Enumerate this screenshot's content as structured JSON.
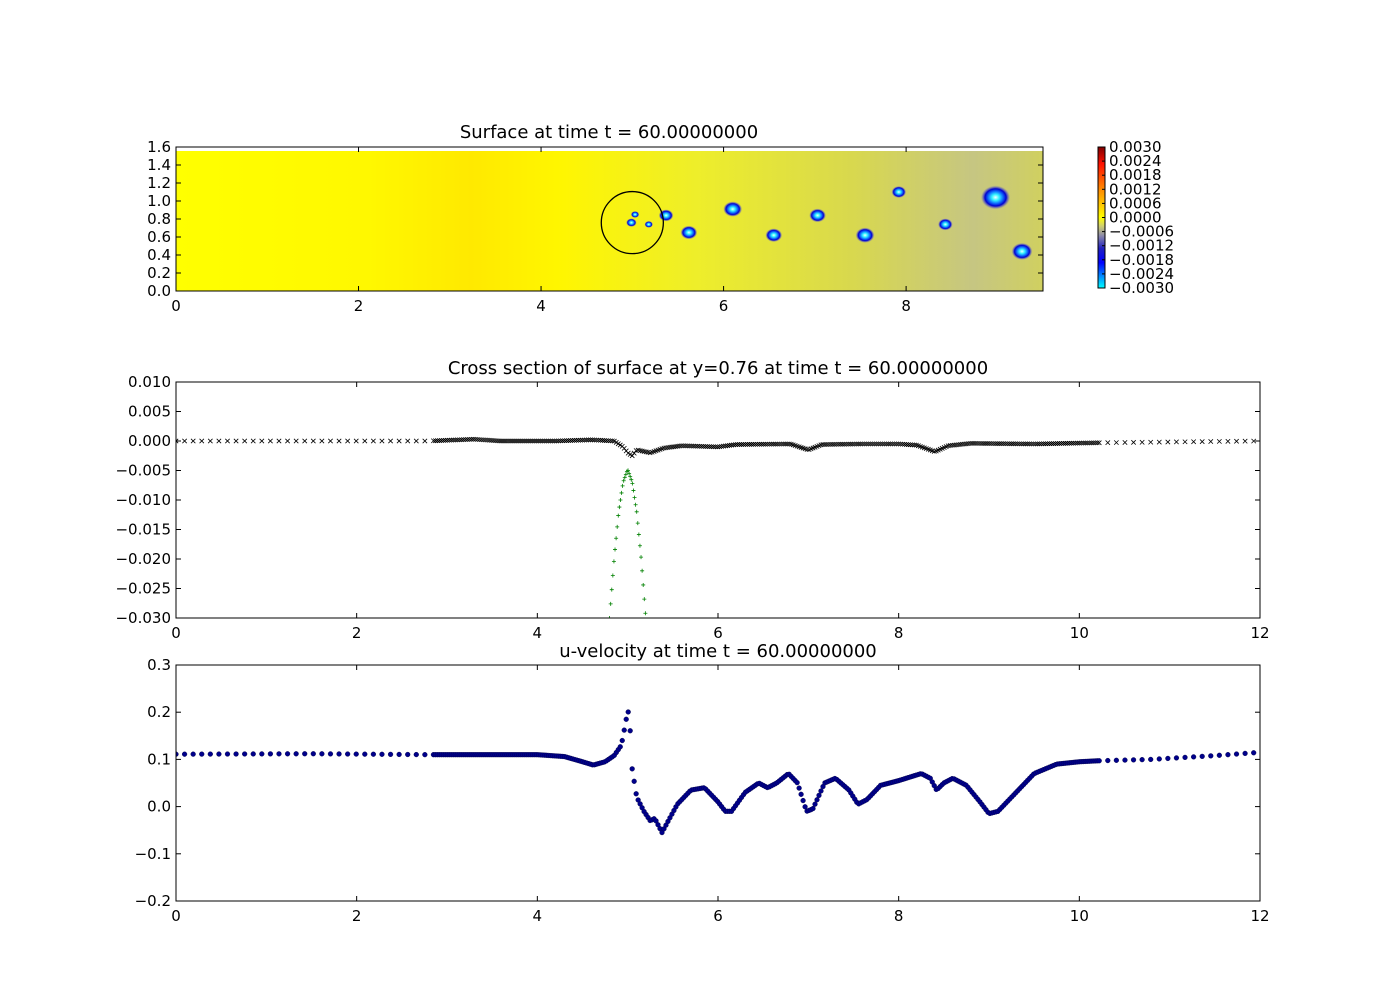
{
  "chart_data": [
    {
      "type": "heatmap",
      "title": "Surface at time t =    60.00000000",
      "xlim": [
        0,
        9.5
      ],
      "ylim": [
        0,
        1.6
      ],
      "xticks": [
        "0",
        "2",
        "4",
        "6",
        "8"
      ],
      "yticks": [
        "0.0",
        "0.2",
        "0.4",
        "0.6",
        "0.8",
        "1.0",
        "1.2",
        "1.4",
        "1.6"
      ],
      "colorbar_ticks": [
        "0.0030",
        "0.0024",
        "0.0018",
        "0.0012",
        "0.0006",
        "0.0000",
        "−0.0006",
        "−0.0012",
        "−0.0018",
        "−0.0024",
        "−0.0030"
      ],
      "colorbar_range": [
        -0.003,
        0.003
      ],
      "background_colors": {
        "high": "#ffe400",
        "zero": "#ffff00",
        "low": "#7a78c0"
      },
      "vortices": [
        {
          "x": 4.99,
          "y": 0.76,
          "r": 0.05
        },
        {
          "x": 5.03,
          "y": 0.85,
          "r": 0.04
        },
        {
          "x": 5.18,
          "y": 0.74,
          "r": 0.04
        },
        {
          "x": 5.37,
          "y": 0.84,
          "r": 0.07
        },
        {
          "x": 5.62,
          "y": 0.65,
          "r": 0.08
        },
        {
          "x": 6.1,
          "y": 0.91,
          "r": 0.09
        },
        {
          "x": 6.55,
          "y": 0.62,
          "r": 0.08
        },
        {
          "x": 7.03,
          "y": 0.84,
          "r": 0.08
        },
        {
          "x": 7.55,
          "y": 0.62,
          "r": 0.09
        },
        {
          "x": 7.92,
          "y": 1.1,
          "r": 0.07
        },
        {
          "x": 8.43,
          "y": 0.74,
          "r": 0.07
        },
        {
          "x": 8.98,
          "y": 1.04,
          "r": 0.14
        },
        {
          "x": 9.27,
          "y": 0.44,
          "r": 0.1
        }
      ],
      "circle": {
        "cx": 5.0,
        "cy": 0.76,
        "r": 0.34
      }
    },
    {
      "type": "scatter",
      "title": "Cross section of surface at y=0.76 at time t =    60.00000000",
      "xlim": [
        0,
        12
      ],
      "ylim": [
        -0.03,
        0.01
      ],
      "xticks": [
        "0",
        "2",
        "4",
        "6",
        "8",
        "10",
        "12"
      ],
      "yticks": [
        "−0.030",
        "−0.025",
        "−0.020",
        "−0.015",
        "−0.010",
        "−0.005",
        "0.000",
        "0.005",
        "0.010"
      ],
      "series": [
        {
          "marker": "x",
          "color": "#000000",
          "x_range": [
            0,
            12
          ],
          "points": [
            [
              0,
              0.0
            ],
            [
              2.8,
              0.0
            ],
            [
              3.3,
              0.0003
            ],
            [
              3.6,
              0.0
            ],
            [
              4.2,
              0.0
            ],
            [
              4.6,
              0.0002
            ],
            [
              4.85,
              0.0
            ],
            [
              4.95,
              -0.001
            ],
            [
              5.0,
              -0.002
            ],
            [
              5.05,
              -0.0025
            ],
            [
              5.1,
              -0.0015
            ],
            [
              5.25,
              -0.002
            ],
            [
              5.4,
              -0.0012
            ],
            [
              5.6,
              -0.0008
            ],
            [
              6.0,
              -0.001
            ],
            [
              6.2,
              -0.0006
            ],
            [
              6.8,
              -0.0005
            ],
            [
              7.0,
              -0.0015
            ],
            [
              7.15,
              -0.0006
            ],
            [
              7.6,
              -0.0005
            ],
            [
              8.0,
              -0.0005
            ],
            [
              8.2,
              -0.0007
            ],
            [
              8.4,
              -0.0018
            ],
            [
              8.55,
              -0.0008
            ],
            [
              8.8,
              -0.0004
            ],
            [
              9.5,
              -0.0005
            ],
            [
              10.2,
              -0.0003
            ],
            [
              12,
              0.0
            ]
          ]
        },
        {
          "marker": "+",
          "color": "#008000",
          "points": [
            [
              4.8,
              -0.03
            ],
            [
              4.85,
              -0.02
            ],
            [
              4.9,
              -0.012
            ],
            [
              4.95,
              -0.007
            ],
            [
              5.0,
              -0.0048
            ],
            [
              5.05,
              -0.007
            ],
            [
              5.1,
              -0.012
            ],
            [
              5.15,
              -0.02
            ],
            [
              5.2,
              -0.03
            ]
          ]
        }
      ]
    },
    {
      "type": "scatter",
      "title": "u-velocity at time t =    60.00000000",
      "xlim": [
        0,
        12
      ],
      "ylim": [
        -0.2,
        0.3
      ],
      "xticks": [
        "0",
        "2",
        "4",
        "6",
        "8",
        "10",
        "12"
      ],
      "yticks": [
        "−0.2",
        "−0.1",
        "0.0",
        "0.1",
        "0.2",
        "0.3"
      ],
      "series": [
        {
          "marker": "o",
          "color": "#00008b",
          "points": [
            [
              0,
              0.111
            ],
            [
              1.5,
              0.112
            ],
            [
              2.8,
              0.11
            ],
            [
              3.5,
              0.11
            ],
            [
              4.0,
              0.11
            ],
            [
              4.3,
              0.106
            ],
            [
              4.5,
              0.095
            ],
            [
              4.62,
              0.088
            ],
            [
              4.75,
              0.095
            ],
            [
              4.85,
              0.108
            ],
            [
              4.93,
              0.13
            ],
            [
              4.98,
              0.18
            ],
            [
              5.0,
              0.205
            ],
            [
              5.02,
              0.19
            ],
            [
              5.05,
              0.08
            ],
            [
              5.1,
              0.02
            ],
            [
              5.18,
              -0.01
            ],
            [
              5.25,
              -0.03
            ],
            [
              5.3,
              -0.025
            ],
            [
              5.38,
              -0.055
            ],
            [
              5.45,
              -0.03
            ],
            [
              5.55,
              0.005
            ],
            [
              5.7,
              0.035
            ],
            [
              5.85,
              0.04
            ],
            [
              6.0,
              0.01
            ],
            [
              6.08,
              -0.01
            ],
            [
              6.15,
              -0.01
            ],
            [
              6.3,
              0.03
            ],
            [
              6.45,
              0.05
            ],
            [
              6.55,
              0.04
            ],
            [
              6.65,
              0.05
            ],
            [
              6.78,
              0.07
            ],
            [
              6.88,
              0.05
            ],
            [
              6.98,
              -0.01
            ],
            [
              7.05,
              -0.005
            ],
            [
              7.18,
              0.05
            ],
            [
              7.3,
              0.06
            ],
            [
              7.45,
              0.035
            ],
            [
              7.55,
              0.005
            ],
            [
              7.65,
              0.015
            ],
            [
              7.8,
              0.045
            ],
            [
              8.0,
              0.055
            ],
            [
              8.25,
              0.07
            ],
            [
              8.35,
              0.06
            ],
            [
              8.42,
              0.035
            ],
            [
              8.5,
              0.05
            ],
            [
              8.6,
              0.06
            ],
            [
              8.75,
              0.045
            ],
            [
              8.9,
              0.01
            ],
            [
              9.0,
              -0.015
            ],
            [
              9.1,
              -0.01
            ],
            [
              9.3,
              0.03
            ],
            [
              9.5,
              0.07
            ],
            [
              9.75,
              0.09
            ],
            [
              10.0,
              0.095
            ],
            [
              10.2,
              0.097
            ],
            [
              10.8,
              0.1
            ],
            [
              11.5,
              0.108
            ],
            [
              12,
              0.115
            ]
          ]
        }
      ]
    }
  ]
}
